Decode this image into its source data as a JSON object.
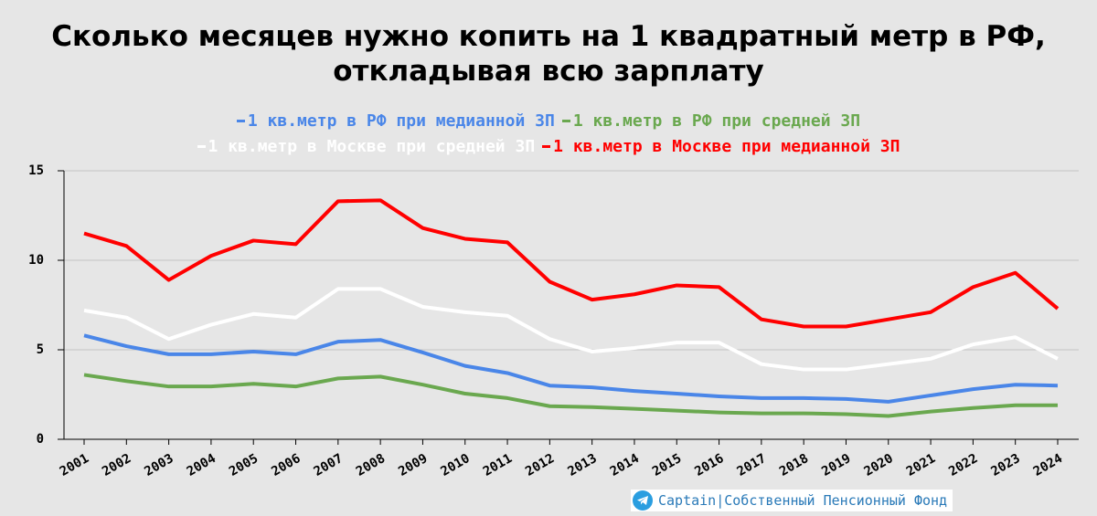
{
  "chart_data": {
    "type": "line",
    "title": [
      "Сколько месяцев нужно копить на 1 квадратный метр в РФ,",
      "откладывая всю зарплату"
    ],
    "categories": [
      "2001",
      "2002",
      "2003",
      "2004",
      "2005",
      "2006",
      "2007",
      "2008",
      "2009",
      "2010",
      "2011",
      "2012",
      "2013",
      "2014",
      "2015",
      "2016",
      "2017",
      "2018",
      "2019",
      "2020",
      "2021",
      "2022",
      "2023",
      "2024"
    ],
    "series": [
      {
        "name": "1 кв.метр в РФ при медианной ЗП",
        "color": "#4a86e8",
        "values": [
          5.8,
          5.2,
          4.75,
          4.75,
          4.9,
          4.75,
          5.45,
          5.55,
          4.85,
          4.1,
          3.7,
          3.0,
          2.9,
          2.7,
          2.55,
          2.4,
          2.3,
          2.3,
          2.25,
          2.1,
          2.45,
          2.8,
          3.05,
          3.0
        ]
      },
      {
        "name": "1 кв.метр в РФ при средней ЗП",
        "color": "#6aa84f",
        "values": [
          3.6,
          3.25,
          2.95,
          2.95,
          3.1,
          2.95,
          3.4,
          3.5,
          3.05,
          2.55,
          2.3,
          1.85,
          1.8,
          1.7,
          1.6,
          1.5,
          1.45,
          1.45,
          1.4,
          1.3,
          1.55,
          1.75,
          1.9,
          1.9
        ]
      },
      {
        "name": "1 кв.метр в Москве при средней ЗП",
        "color": "#ffffff",
        "values": [
          7.2,
          6.8,
          5.6,
          6.4,
          7.0,
          6.8,
          8.4,
          8.4,
          7.4,
          7.1,
          6.9,
          5.6,
          4.9,
          5.1,
          5.4,
          5.4,
          4.2,
          3.9,
          3.9,
          4.2,
          4.5,
          5.3,
          5.7,
          4.5
        ]
      },
      {
        "name": "1 кв.метр в Москве при медианной ЗП",
        "color": "#ff0000",
        "values": [
          11.5,
          10.8,
          8.9,
          10.25,
          11.1,
          10.9,
          13.3,
          13.35,
          11.8,
          11.2,
          11.0,
          8.8,
          7.8,
          8.1,
          8.6,
          8.5,
          6.7,
          6.3,
          6.3,
          6.7,
          7.1,
          8.5,
          9.3,
          7.3
        ]
      }
    ],
    "ylim": [
      0,
      15
    ],
    "yticks": [
      0,
      5,
      10,
      15
    ],
    "grid": true,
    "watermark": "Captain|Собственный Пенсионный Фонд"
  }
}
